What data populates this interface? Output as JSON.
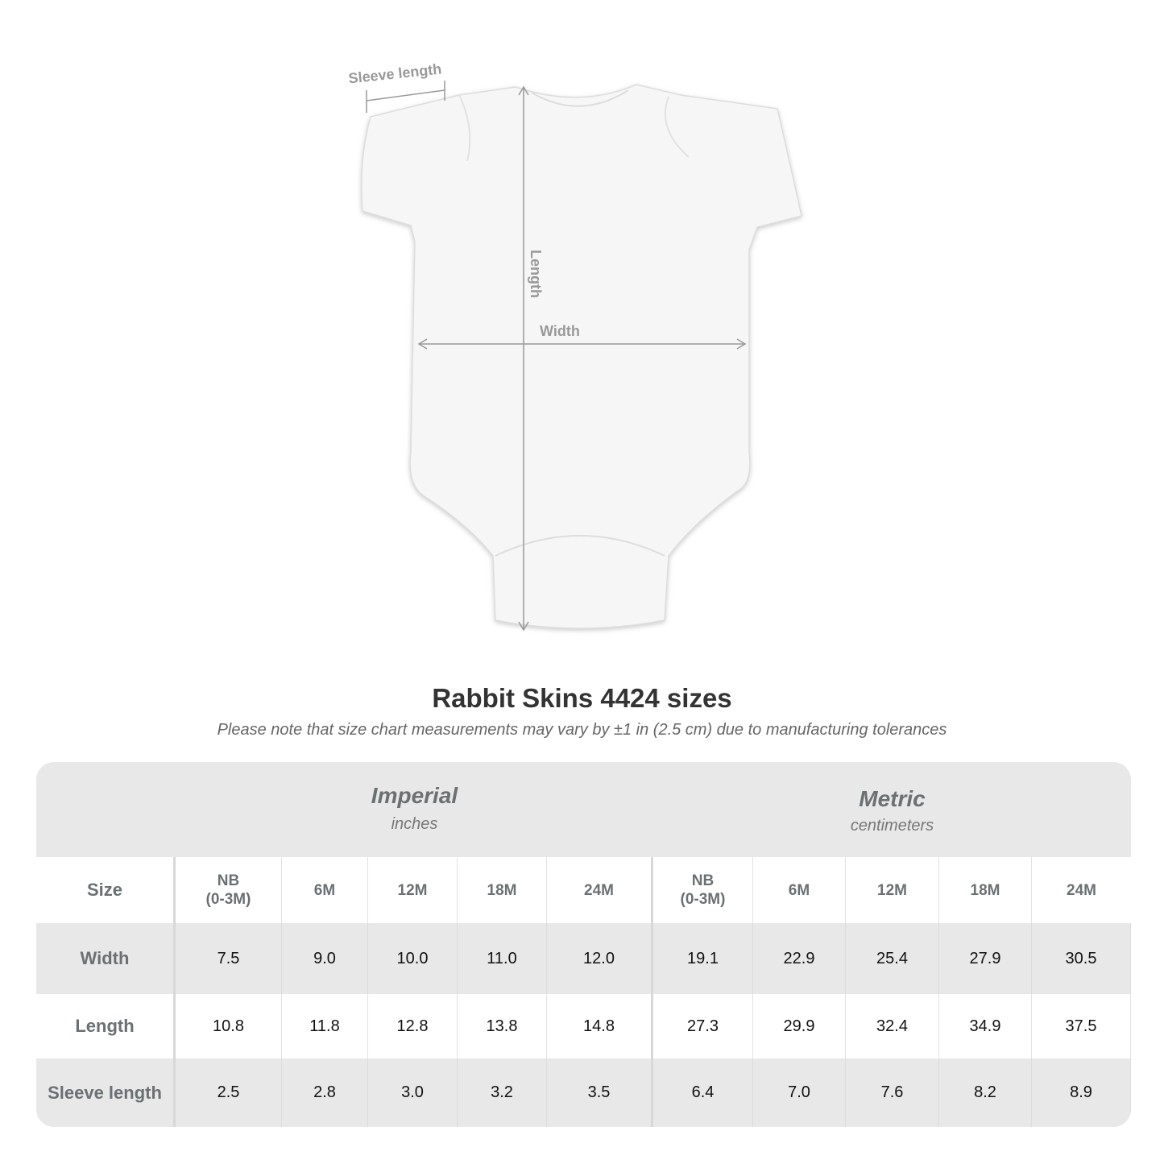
{
  "diagram": {
    "sleeve_label": "Sleeve length",
    "length_label": "Length",
    "width_label": "Width"
  },
  "title": "Rabbit Skins 4424 sizes",
  "subtitle": "Please note that size chart measurements may vary by ±1 in (2.5 cm) due to manufacturing tolerances",
  "table": {
    "imperial": {
      "label": "Imperial",
      "unit": "inches"
    },
    "metric": {
      "label": "Metric",
      "unit": "centimeters"
    },
    "size_label": "Size",
    "sizes": [
      "NB\n(0-3M)",
      "6M",
      "12M",
      "18M",
      "24M",
      "NB\n(0-3M)",
      "6M",
      "12M",
      "18M",
      "24M"
    ],
    "rows": [
      {
        "label": "Width",
        "values": [
          "7.5",
          "9.0",
          "10.0",
          "11.0",
          "12.0",
          "19.1",
          "22.9",
          "25.4",
          "27.9",
          "30.5"
        ]
      },
      {
        "label": "Length",
        "values": [
          "10.8",
          "11.8",
          "12.8",
          "13.8",
          "14.8",
          "27.3",
          "29.9",
          "32.4",
          "34.9",
          "37.5"
        ]
      },
      {
        "label": "Sleeve length",
        "values": [
          "2.5",
          "2.8",
          "3.0",
          "3.2",
          "3.5",
          "6.4",
          "7.0",
          "7.6",
          "8.2",
          "8.9"
        ]
      }
    ]
  }
}
